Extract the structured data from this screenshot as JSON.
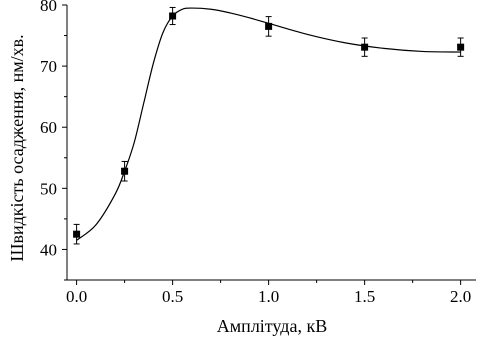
{
  "chart_data": {
    "type": "scatter",
    "title": "",
    "xlabel": "Амплітуда, кВ",
    "ylabel": "Швидкість осадження, нм/хв.",
    "xlim": [
      -0.05,
      2.08
    ],
    "ylim": [
      35,
      80
    ],
    "x_ticks": [
      0.0,
      0.5,
      1.0,
      1.5,
      2.0
    ],
    "x_tick_labels": [
      "0.0",
      "0.5",
      "1.0",
      "1.5",
      "2.0"
    ],
    "y_ticks": [
      40,
      50,
      60,
      70,
      80
    ],
    "y_tick_labels": [
      "40",
      "50",
      "60",
      "70",
      "80"
    ],
    "grid": false,
    "legend": "none",
    "marker": "square",
    "color": "#000000",
    "series": [
      {
        "x": [
          0.0,
          0.25,
          0.5,
          1.0,
          1.5,
          2.0
        ],
        "y": [
          42.5,
          52.8,
          78.2,
          76.5,
          73.1,
          73.1
        ],
        "yerr": [
          1.6,
          1.6,
          1.4,
          1.6,
          1.5,
          1.5
        ]
      }
    ],
    "fit_curve": {
      "x": [
        0.0,
        0.1,
        0.2,
        0.25,
        0.3,
        0.35,
        0.4,
        0.45,
        0.5,
        0.55,
        0.6,
        0.7,
        0.8,
        0.9,
        1.0,
        1.2,
        1.4,
        1.6,
        1.8,
        2.0
      ],
      "y": [
        41.5,
        44.0,
        49.0,
        52.8,
        57.5,
        64.0,
        70.5,
        75.5,
        78.2,
        79.3,
        79.5,
        79.3,
        78.7,
        77.9,
        77.0,
        75.2,
        73.8,
        72.9,
        72.4,
        72.3
      ]
    }
  }
}
